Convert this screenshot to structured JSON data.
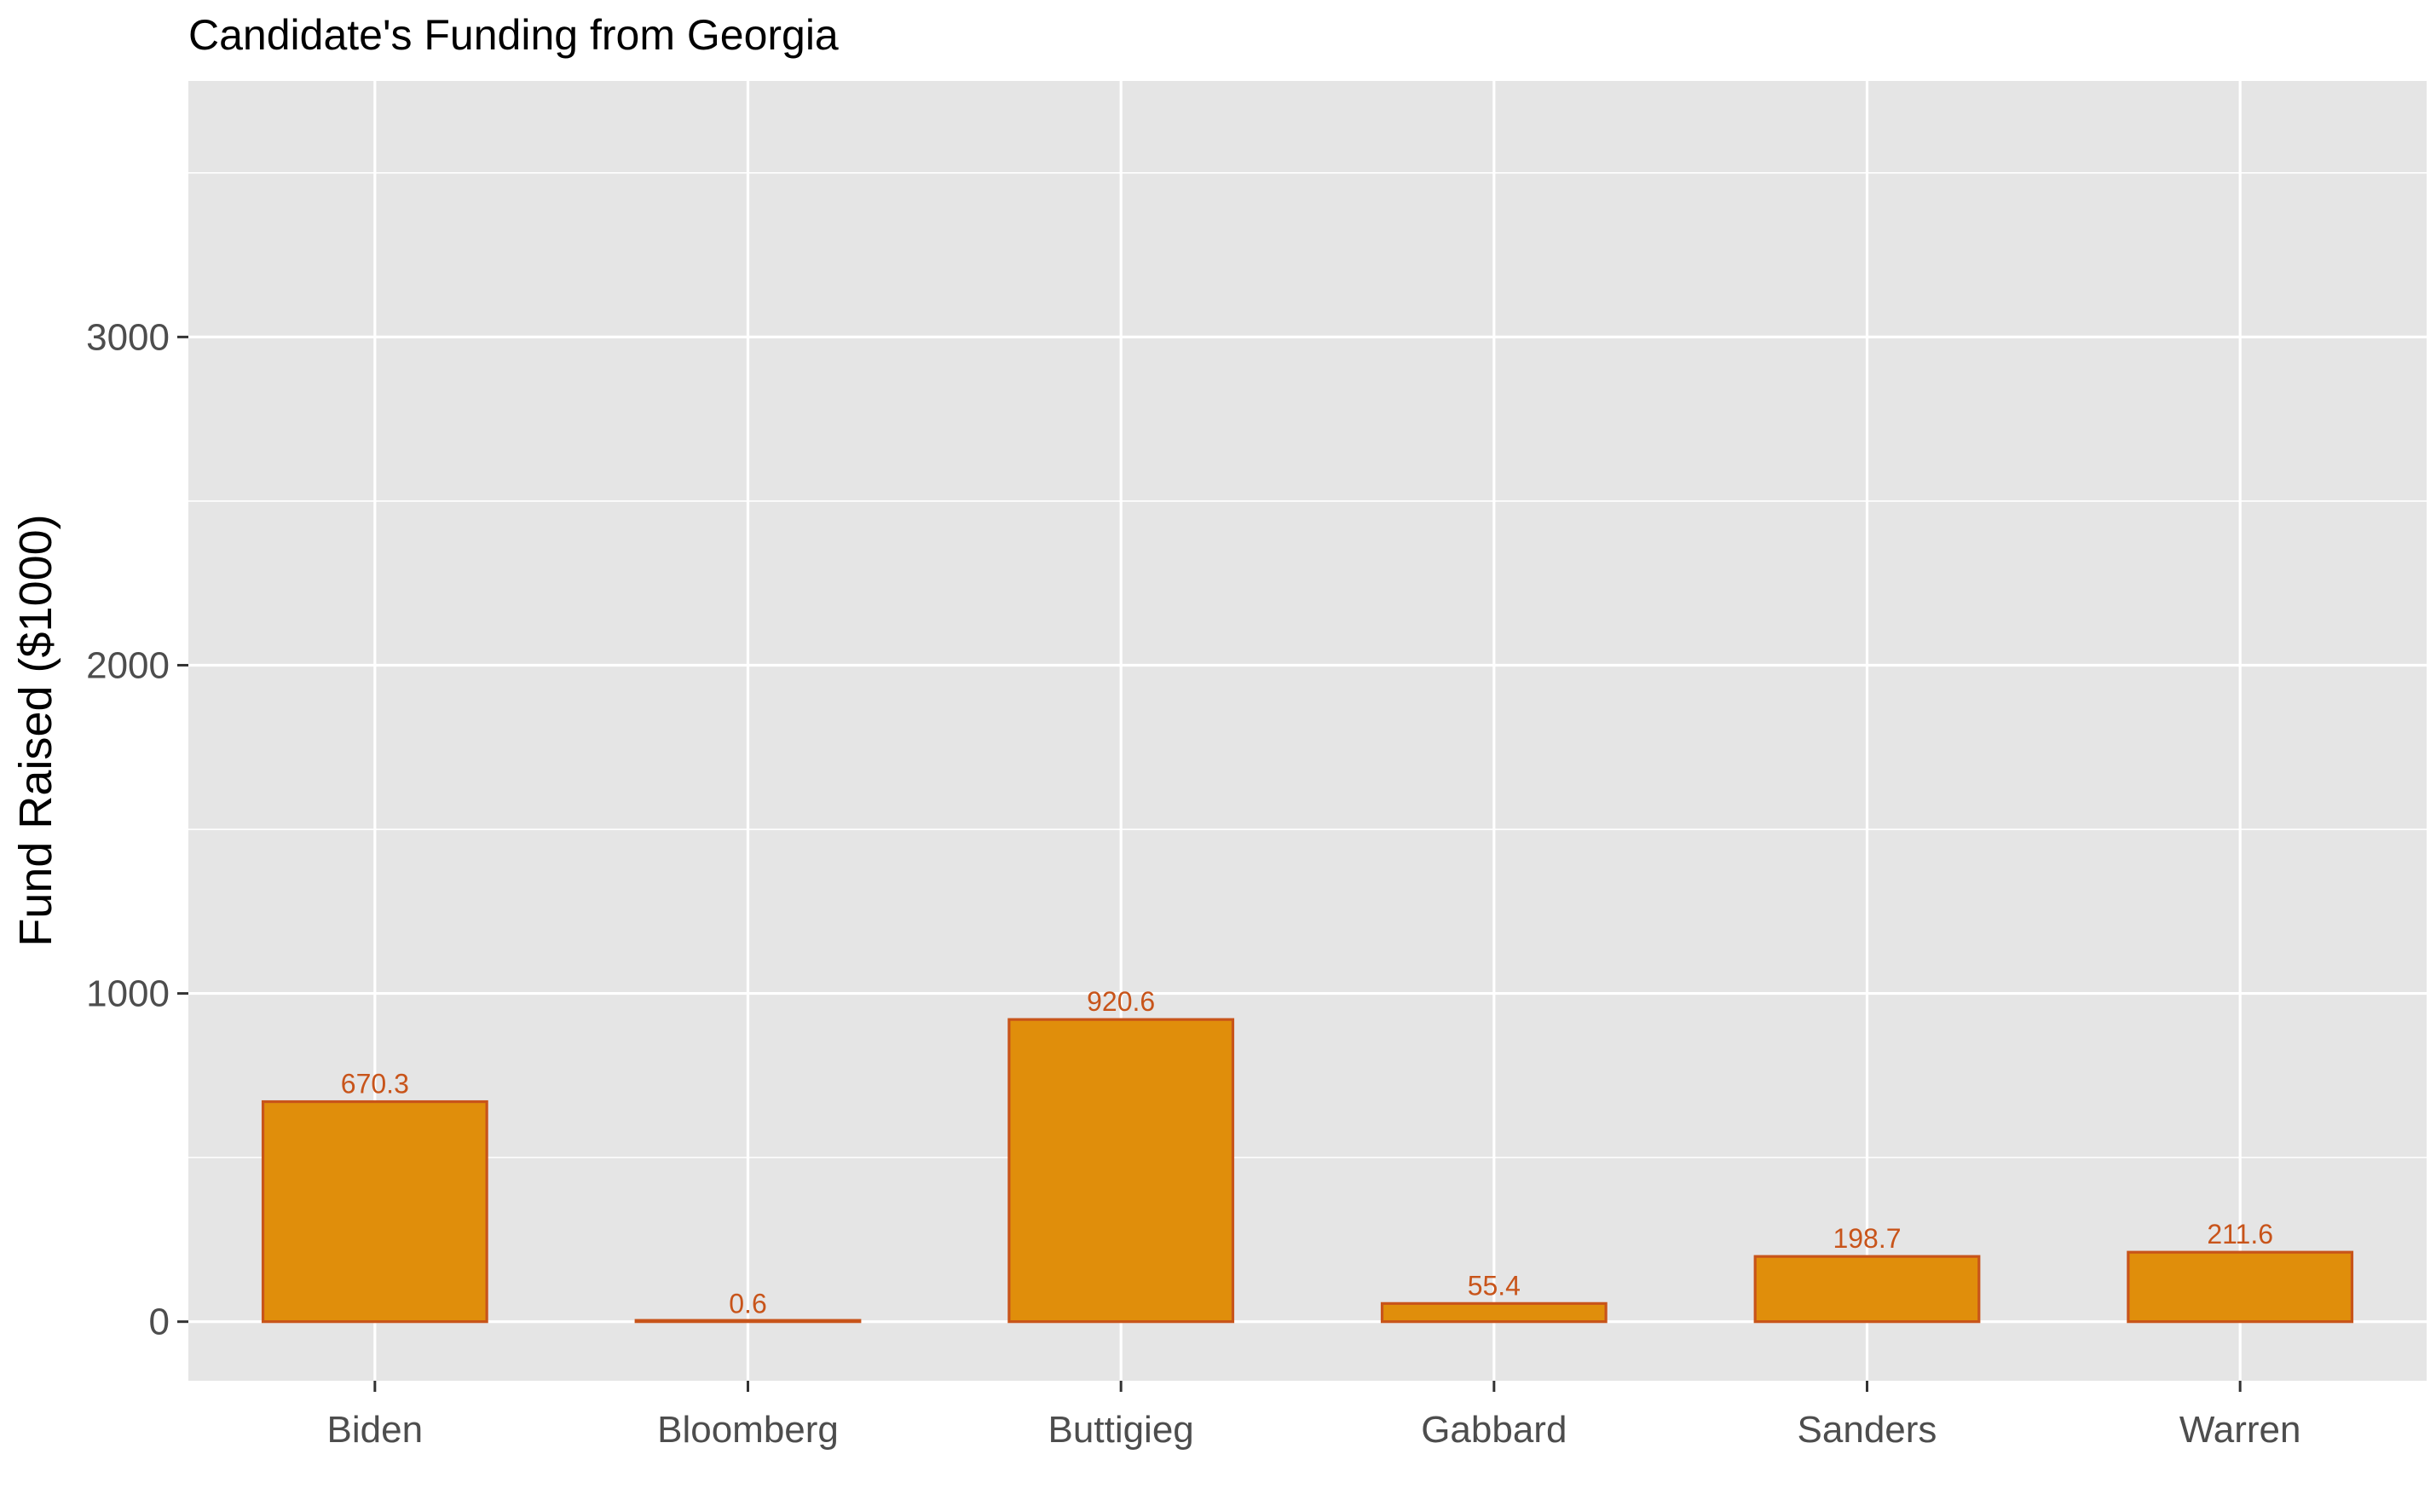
{
  "chart_data": {
    "type": "bar",
    "title": "Candidate's Funding from Georgia",
    "xlabel": "",
    "ylabel": "Fund Raised ($1000)",
    "categories": [
      "Biden",
      "Bloomberg",
      "Buttigieg",
      "Gabbard",
      "Sanders",
      "Warren"
    ],
    "values": [
      670.3,
      0.6,
      920.6,
      55.4,
      198.7,
      211.6
    ],
    "data_labels": [
      "670.3",
      "0.6",
      "920.6",
      "55.4",
      "198.7",
      "211.6"
    ],
    "yticks": [
      0,
      1000,
      2000,
      3000
    ],
    "ytick_labels": [
      "0",
      "1000",
      "2000",
      "3000"
    ],
    "ylim": [
      -180,
      3780
    ],
    "grid": true,
    "legend": "none",
    "colors": {
      "panel_background": "#e5e5e5",
      "grid_line": "#ffffff",
      "bar_fill": "#e08e0b",
      "bar_outline": "#c8541a",
      "data_label": "#c8541a",
      "tick_label": "#4d4d4d",
      "tick_mark": "#333333"
    }
  }
}
